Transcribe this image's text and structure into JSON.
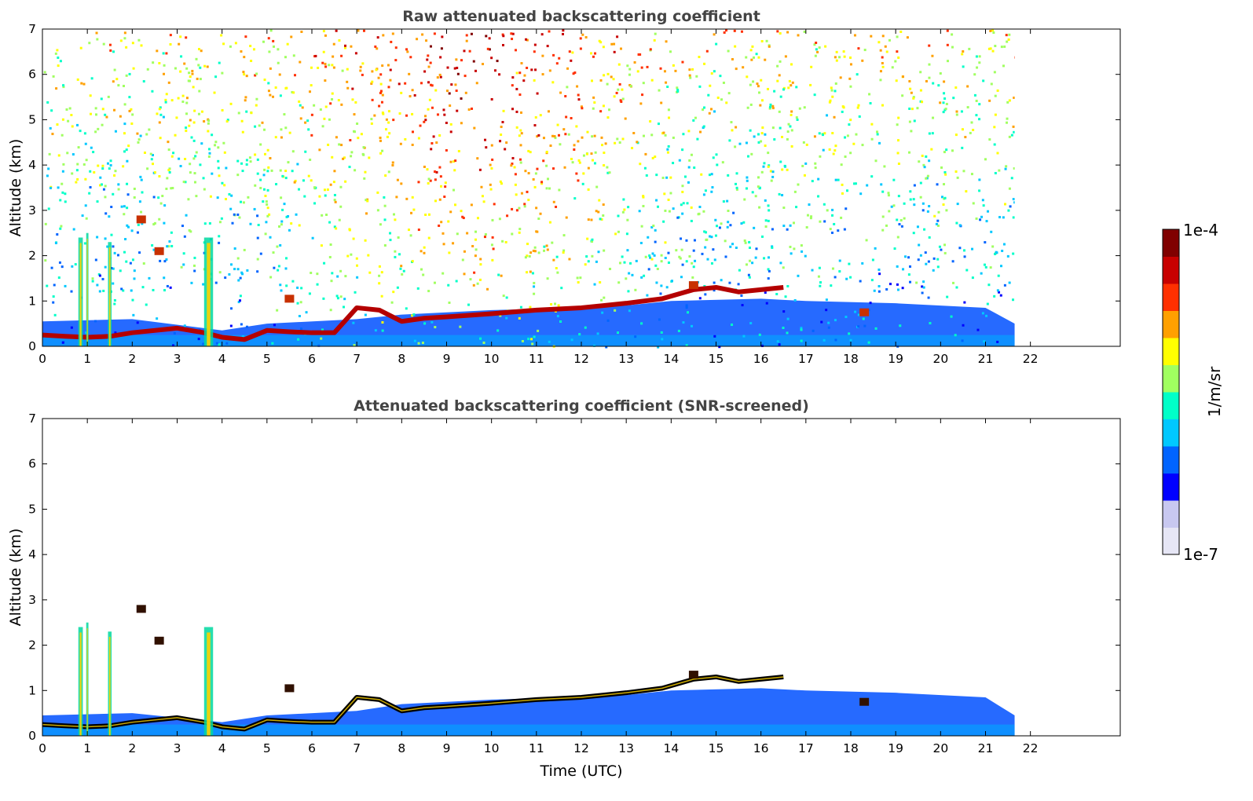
{
  "chart_data": [
    {
      "type": "heatmap",
      "title": "Raw attenuated backscattering coefficient",
      "xlabel": "",
      "ylabel": "Altitude (km)",
      "xlim": [
        0,
        24
      ],
      "ylim": [
        0,
        7
      ],
      "xticks": [
        "0",
        "1",
        "2",
        "3",
        "4",
        "5",
        "6",
        "7",
        "8",
        "9",
        "10",
        "11",
        "12",
        "13",
        "14",
        "15",
        "16",
        "17",
        "18",
        "19",
        "20",
        "21",
        "22"
      ],
      "yticks": [
        "0",
        "1",
        "2",
        "3",
        "4",
        "5",
        "6",
        "7"
      ],
      "data_end_time": 21.65,
      "grid": false,
      "screened": false,
      "noise_background": true,
      "aerosol_layer_top": [
        [
          0,
          0.55
        ],
        [
          2,
          0.6
        ],
        [
          4,
          0.35
        ],
        [
          5,
          0.5
        ],
        [
          7,
          0.6
        ],
        [
          8,
          0.7
        ],
        [
          10,
          0.8
        ],
        [
          12,
          0.85
        ],
        [
          13,
          0.9
        ],
        [
          14,
          1.0
        ],
        [
          16,
          1.05
        ],
        [
          17,
          1.0
        ],
        [
          19,
          0.95
        ],
        [
          21,
          0.85
        ],
        [
          21.65,
          0.5
        ]
      ],
      "boundary_layer": [
        [
          0,
          0.25
        ],
        [
          0.5,
          0.22
        ],
        [
          1,
          0.2
        ],
        [
          1.5,
          0.22
        ],
        [
          2,
          0.3
        ],
        [
          3,
          0.4
        ],
        [
          3.6,
          0.3
        ],
        [
          4,
          0.2
        ],
        [
          4.5,
          0.15
        ],
        [
          5,
          0.35
        ],
        [
          5.5,
          0.32
        ],
        [
          6,
          0.3
        ],
        [
          6.5,
          0.3
        ],
        [
          7,
          0.85
        ],
        [
          7.5,
          0.8
        ],
        [
          8,
          0.55
        ],
        [
          8.5,
          0.62
        ],
        [
          9,
          0.65
        ],
        [
          10,
          0.72
        ],
        [
          11,
          0.8
        ],
        [
          12,
          0.85
        ],
        [
          13,
          0.95
        ],
        [
          13.8,
          1.05
        ],
        [
          14.5,
          1.25
        ],
        [
          15,
          1.3
        ],
        [
          15.5,
          1.2
        ],
        [
          16,
          1.25
        ],
        [
          16.5,
          1.3
        ]
      ],
      "vertical_plumes": [
        {
          "t": 0.85,
          "top": 2.4,
          "w": 0.1
        },
        {
          "t": 1.0,
          "top": 2.5,
          "w": 0.05
        },
        {
          "t": 1.5,
          "top": 2.3,
          "w": 0.08
        },
        {
          "t": 3.7,
          "top": 2.4,
          "w": 0.2
        }
      ],
      "small_patches": [
        {
          "t": 2.2,
          "alt": 2.8
        },
        {
          "t": 2.6,
          "alt": 2.1
        },
        {
          "t": 5.5,
          "alt": 1.05
        },
        {
          "t": 14.5,
          "alt": 1.35
        },
        {
          "t": 18.3,
          "alt": 0.75
        }
      ]
    },
    {
      "type": "heatmap",
      "title": "Attenuated backscattering coefficient (SNR-screened)",
      "xlabel": "Time (UTC)",
      "ylabel": "Altitude (km)",
      "xlim": [
        0,
        24
      ],
      "ylim": [
        0,
        7
      ],
      "xticks": [
        "0",
        "1",
        "2",
        "3",
        "4",
        "5",
        "6",
        "7",
        "8",
        "9",
        "10",
        "11",
        "12",
        "13",
        "14",
        "15",
        "16",
        "17",
        "18",
        "19",
        "20",
        "21",
        "22"
      ],
      "yticks": [
        "0",
        "1",
        "2",
        "3",
        "4",
        "5",
        "6",
        "7"
      ],
      "data_end_time": 21.65,
      "grid": false,
      "screened": true,
      "noise_background": false,
      "aerosol_layer_top": [
        [
          0,
          0.45
        ],
        [
          2,
          0.5
        ],
        [
          4,
          0.3
        ],
        [
          5,
          0.45
        ],
        [
          7,
          0.55
        ],
        [
          8,
          0.7
        ],
        [
          10,
          0.8
        ],
        [
          12,
          0.85
        ],
        [
          13,
          0.9
        ],
        [
          14,
          1.0
        ],
        [
          16,
          1.05
        ],
        [
          17,
          1.0
        ],
        [
          19,
          0.95
        ],
        [
          21,
          0.85
        ],
        [
          21.65,
          0.45
        ]
      ],
      "boundary_layer": [
        [
          0,
          0.25
        ],
        [
          0.5,
          0.22
        ],
        [
          1,
          0.2
        ],
        [
          1.5,
          0.22
        ],
        [
          2,
          0.3
        ],
        [
          3,
          0.4
        ],
        [
          3.6,
          0.3
        ],
        [
          4,
          0.2
        ],
        [
          4.5,
          0.15
        ],
        [
          5,
          0.35
        ],
        [
          5.5,
          0.32
        ],
        [
          6,
          0.3
        ],
        [
          6.5,
          0.3
        ],
        [
          7,
          0.85
        ],
        [
          7.5,
          0.8
        ],
        [
          8,
          0.55
        ],
        [
          8.5,
          0.62
        ],
        [
          9,
          0.65
        ],
        [
          10,
          0.72
        ],
        [
          11,
          0.8
        ],
        [
          12,
          0.85
        ],
        [
          13,
          0.95
        ],
        [
          13.8,
          1.05
        ],
        [
          14.5,
          1.25
        ],
        [
          15,
          1.3
        ],
        [
          15.5,
          1.2
        ],
        [
          16,
          1.25
        ],
        [
          16.5,
          1.3
        ]
      ],
      "vertical_plumes": [
        {
          "t": 0.85,
          "top": 2.4,
          "w": 0.1
        },
        {
          "t": 1.0,
          "top": 2.5,
          "w": 0.05
        },
        {
          "t": 1.5,
          "top": 2.3,
          "w": 0.08
        },
        {
          "t": 3.7,
          "top": 2.4,
          "w": 0.2
        }
      ],
      "small_patches": [
        {
          "t": 2.2,
          "alt": 2.8
        },
        {
          "t": 2.6,
          "alt": 2.1
        },
        {
          "t": 5.5,
          "alt": 1.05
        },
        {
          "t": 14.5,
          "alt": 1.35
        },
        {
          "t": 18.3,
          "alt": 0.75
        }
      ]
    }
  ],
  "colorbar": {
    "max_label": "1e-4",
    "min_label": "1e-7",
    "unit_label": "1/m/sr",
    "scale": "log",
    "range": [
      1e-07,
      0.0001
    ],
    "colormap": [
      "#e6e6f5",
      "#c8c8f0",
      "#0000ff",
      "#0064ff",
      "#00c8ff",
      "#00ffc8",
      "#a0ff60",
      "#ffff00",
      "#ffa000",
      "#ff3000",
      "#c80000",
      "#800000"
    ]
  }
}
